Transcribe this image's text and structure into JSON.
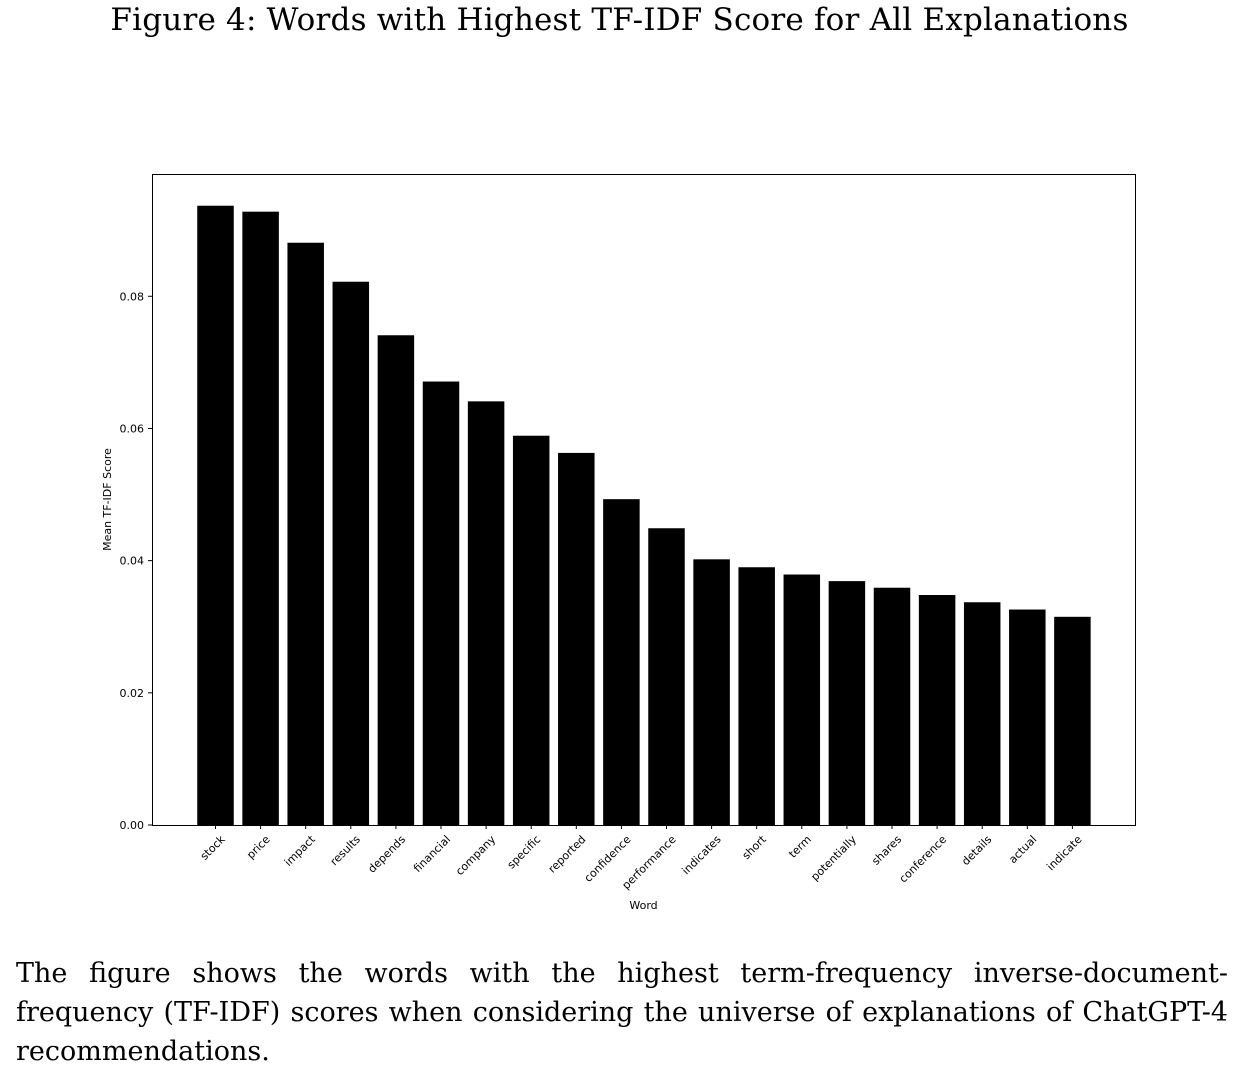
{
  "figure": {
    "title": "Figure 4: Words with Highest TF-IDF Score for All Explanations",
    "caption": "The figure shows the words with the highest term-frequency inverse-document-frequency (TF-IDF) scores when considering the universe of explanations of ChatGPT-4 recommendations."
  },
  "chart_data": {
    "type": "bar",
    "title": "",
    "xlabel": "Word",
    "ylabel": "Mean TF-IDF Score",
    "ylim": [
      0,
      0.0985
    ],
    "yticks": [
      0.0,
      0.02,
      0.04,
      0.06,
      0.08
    ],
    "ytick_labels": [
      "0.00",
      "0.02",
      "0.04",
      "0.06",
      "0.08"
    ],
    "grid": false,
    "bar_color": "#000000",
    "categories": [
      "stock",
      "price",
      "impact",
      "results",
      "depends",
      "financial",
      "company",
      "specific",
      "reported",
      "confidence",
      "performance",
      "indicates",
      "short",
      "term",
      "potentially",
      "shares",
      "conference",
      "details",
      "actual",
      "indicate"
    ],
    "values": [
      0.0937,
      0.0928,
      0.0881,
      0.0822,
      0.0741,
      0.0671,
      0.0641,
      0.0589,
      0.0563,
      0.0493,
      0.0449,
      0.0402,
      0.039,
      0.0379,
      0.0369,
      0.0359,
      0.0348,
      0.0337,
      0.0326,
      0.0315
    ]
  }
}
